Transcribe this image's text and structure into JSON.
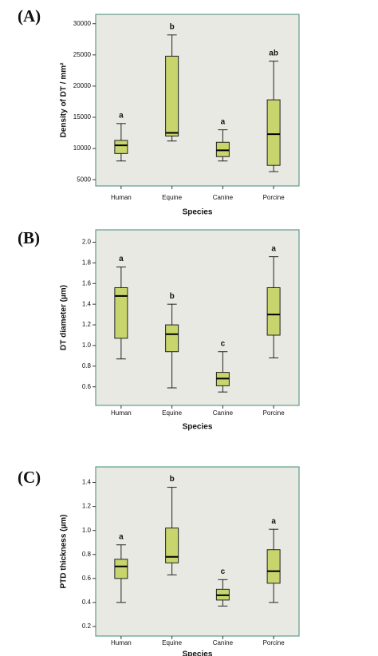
{
  "chart_data": [
    {
      "type": "box",
      "title": "(A)",
      "xlabel": "Species",
      "ylabel": "Density of DT / mm²",
      "categories": [
        "Human",
        "Equine",
        "Canine",
        "Porcine"
      ],
      "min": [
        8000,
        11200,
        8000,
        6300
      ],
      "q1": [
        9200,
        12000,
        8700,
        7300
      ],
      "median": [
        10500,
        12500,
        9700,
        12300
      ],
      "q3": [
        11300,
        24800,
        11000,
        17800
      ],
      "max": [
        14000,
        28200,
        13000,
        24000
      ],
      "annotations": [
        "a",
        "b",
        "a",
        "ab"
      ],
      "color": "#c8d46c",
      "ylim": [
        4000,
        31500
      ],
      "yticks": [
        5000,
        10000,
        15000,
        20000,
        25000,
        30000
      ]
    },
    {
      "type": "box",
      "title": "(B)",
      "xlabel": "Species",
      "ylabel": "DT diameter (µm)",
      "categories": [
        "Human",
        "Equine",
        "Canine",
        "Porcine"
      ],
      "min": [
        0.87,
        0.59,
        0.55,
        0.88
      ],
      "q1": [
        1.07,
        0.94,
        0.61,
        1.1
      ],
      "median": [
        1.48,
        1.11,
        0.68,
        1.3
      ],
      "q3": [
        1.56,
        1.2,
        0.74,
        1.56
      ],
      "max": [
        1.76,
        1.4,
        0.94,
        1.86
      ],
      "annotations": [
        "a",
        "b",
        "c",
        "a"
      ],
      "color": "#c8d46c",
      "ylim": [
        0.42,
        2.12
      ],
      "yticks": [
        0.6,
        0.8,
        {
          "value": 1,
          "label": "1.0"
        },
        1.2,
        1.4,
        1.6,
        1.8,
        {
          "value": 2,
          "label": "2.0"
        }
      ]
    },
    {
      "type": "box",
      "title": "(C)",
      "xlabel": "Species",
      "ylabel": "PTD thickness (µm)",
      "categories": [
        "Human",
        "Equine",
        "Canine",
        "Porcine"
      ],
      "min": [
        0.4,
        0.63,
        0.37,
        0.4
      ],
      "q1": [
        0.6,
        0.73,
        0.42,
        0.56
      ],
      "median": [
        0.7,
        0.78,
        0.46,
        0.66
      ],
      "q3": [
        0.76,
        1.02,
        0.51,
        0.84
      ],
      "max": [
        0.88,
        1.36,
        0.59,
        1.01
      ],
      "annotations": [
        "a",
        "b",
        "c",
        "a"
      ],
      "color": "#c8d46c",
      "ylim": [
        0.12,
        1.53
      ],
      "yticks": [
        0.2,
        0.4,
        0.6,
        0.8,
        {
          "value": 1,
          "label": "1.0"
        },
        1.2,
        1.4
      ]
    }
  ]
}
